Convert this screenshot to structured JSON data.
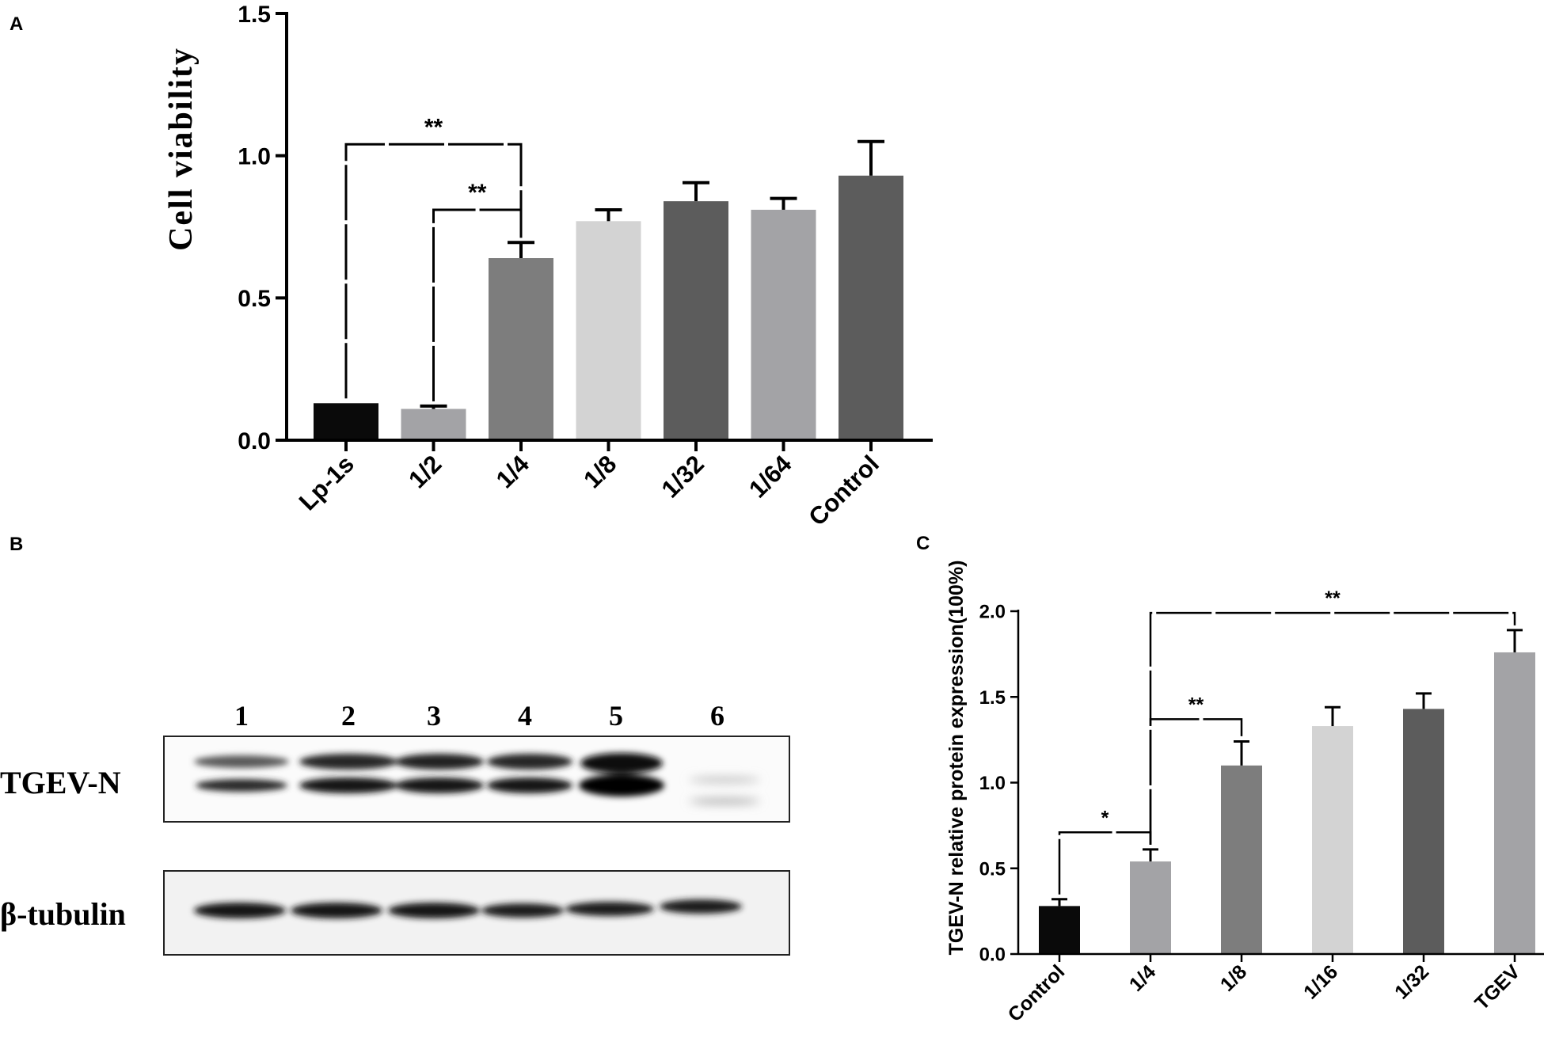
{
  "panels": {
    "a": {
      "label": "A"
    },
    "b": {
      "label": "B"
    },
    "c": {
      "label": "C"
    }
  },
  "chart_data": [
    {
      "id": "A",
      "type": "bar",
      "ylabel": "Cell viability",
      "ylim": [
        0,
        1.5
      ],
      "yticks": [
        "0.0",
        "0.5",
        "1.0",
        "1.5"
      ],
      "categories": [
        "Lp-1s",
        "1/2",
        "1/4",
        "1/8",
        "1/32",
        "1/64",
        "Control"
      ],
      "values": [
        0.13,
        0.11,
        0.64,
        0.77,
        0.84,
        0.81,
        0.93
      ],
      "errors": [
        0.0,
        0.01,
        0.055,
        0.04,
        0.065,
        0.04,
        0.12
      ],
      "colors": [
        "#0a0a0a",
        "#a3a3a6",
        "#7d7d7d",
        "#d3d3d3",
        "#5c5c5c",
        "#a3a3a6",
        "#5c5c5c"
      ],
      "significance": [
        {
          "from": "Lp-1s",
          "to": "1/4",
          "label": "**",
          "y": 1.04
        },
        {
          "from": "1/2",
          "to": "1/4",
          "label": "**",
          "y": 0.81
        }
      ]
    },
    {
      "id": "C",
      "type": "bar",
      "ylabel": "TGEV-N relative protein expression(100%)",
      "ylim": [
        0,
        2.0
      ],
      "yticks": [
        "0.0",
        "0.5",
        "1.0",
        "1.5",
        "2.0"
      ],
      "categories": [
        "Control",
        "1/4",
        "1/8",
        "1/16",
        "1/32",
        "TGEV"
      ],
      "values": [
        0.28,
        0.54,
        1.1,
        1.33,
        1.43,
        1.76
      ],
      "errors": [
        0.04,
        0.07,
        0.14,
        0.11,
        0.09,
        0.13
      ],
      "colors": [
        "#0a0a0a",
        "#a3a3a6",
        "#7d7d7d",
        "#d3d3d3",
        "#5c5c5c",
        "#a3a3a6"
      ],
      "significance": [
        {
          "from": "Control",
          "to": "1/4",
          "label": "*",
          "y": 0.71
        },
        {
          "from": "1/4",
          "to": "1/8",
          "label": "**",
          "y": 1.37
        },
        {
          "from": "1/4",
          "to": "TGEV",
          "label": "**",
          "y": 1.99
        }
      ]
    }
  ],
  "blot": {
    "lanes": [
      "1",
      "2",
      "3",
      "4",
      "5",
      "6"
    ],
    "rows": [
      {
        "label": "TGEV-N"
      },
      {
        "label": "β-tubulin"
      }
    ]
  }
}
